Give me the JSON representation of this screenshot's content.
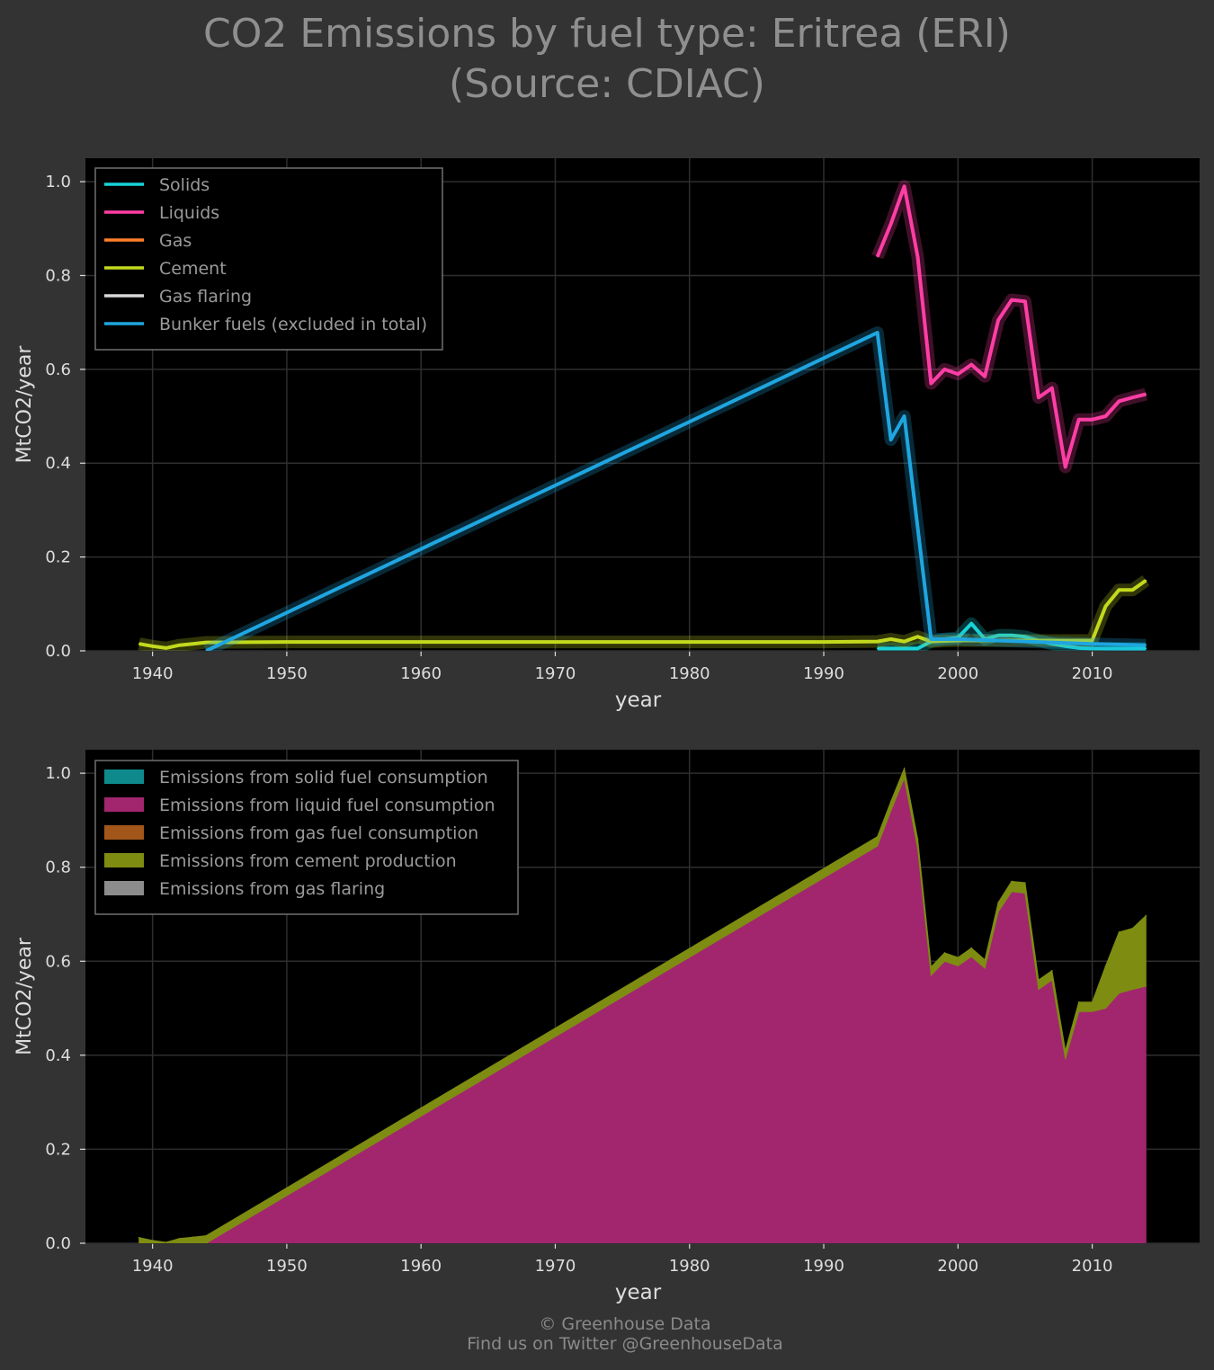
{
  "title": {
    "line1": "CO2 Emissions by fuel type: Eritrea (ERI)",
    "line2": "(Source: CDIAC)"
  },
  "footer": {
    "line1": "© Greenhouse Data",
    "line2": "Find us on Twitter @GreenhouseData"
  },
  "colors": {
    "background": "#333333",
    "plot_background": "#000000",
    "grid": "#2e2e2e",
    "text": "#dddddd",
    "legend_text": "#9a9a9a"
  },
  "chart_data": [
    {
      "type": "line",
      "xlabel": "year",
      "ylabel": "MtCO2/year",
      "xlim": [
        1935,
        2018
      ],
      "ylim": [
        0,
        1.05
      ],
      "xticks": [
        1940,
        1950,
        1960,
        1970,
        1980,
        1990,
        2000,
        2010
      ],
      "yticks": [
        "0.0",
        "0.2",
        "0.4",
        "0.6",
        "0.8",
        "1.0"
      ],
      "grid": true,
      "legend_position": "top-left",
      "series": [
        {
          "name": "Solids",
          "color": "#17d3d8",
          "points": [
            [
              1994,
              0.005
            ],
            [
              1995,
              0.005
            ],
            [
              1996,
              0.005
            ],
            [
              1997,
              0.005
            ],
            [
              1998,
              0.02
            ],
            [
              1999,
              0.025
            ],
            [
              2000,
              0.028
            ],
            [
              2001,
              0.058
            ],
            [
              2002,
              0.025
            ],
            [
              2003,
              0.033
            ],
            [
              2004,
              0.033
            ],
            [
              2005,
              0.03
            ],
            [
              2006,
              0.022
            ],
            [
              2007,
              0.015
            ],
            [
              2008,
              0.01
            ],
            [
              2009,
              0.006
            ],
            [
              2010,
              0.005
            ],
            [
              2011,
              0.005
            ],
            [
              2012,
              0.005
            ],
            [
              2013,
              0.005
            ],
            [
              2014,
              0.005
            ]
          ]
        },
        {
          "name": "Liquids",
          "color": "#ff3ea5",
          "points": [
            [
              1994,
              0.84
            ],
            [
              1995,
              0.91
            ],
            [
              1996,
              0.99
            ],
            [
              1997,
              0.84
            ],
            [
              1998,
              0.57
            ],
            [
              1999,
              0.6
            ],
            [
              2000,
              0.59
            ],
            [
              2001,
              0.61
            ],
            [
              2002,
              0.585
            ],
            [
              2003,
              0.705
            ],
            [
              2004,
              0.748
            ],
            [
              2005,
              0.745
            ],
            [
              2006,
              0.54
            ],
            [
              2007,
              0.56
            ],
            [
              2008,
              0.392
            ],
            [
              2009,
              0.493
            ],
            [
              2010,
              0.493
            ],
            [
              2011,
              0.5
            ],
            [
              2012,
              0.532
            ],
            [
              2013,
              0.54
            ],
            [
              2014,
              0.547
            ]
          ]
        },
        {
          "name": "Gas",
          "color": "#ff7f2a",
          "points": []
        },
        {
          "name": "Cement",
          "color": "#c2d91e",
          "points": [
            [
              1939,
              0.015
            ],
            [
              1940,
              0.01
            ],
            [
              1941,
              0.006
            ],
            [
              1942,
              0.012
            ],
            [
              1943,
              0.015
            ],
            [
              1944,
              0.018
            ],
            [
              1950,
              0.019
            ],
            [
              1960,
              0.019
            ],
            [
              1970,
              0.019
            ],
            [
              1980,
              0.019
            ],
            [
              1990,
              0.019
            ],
            [
              1994,
              0.02
            ],
            [
              1995,
              0.025
            ],
            [
              1996,
              0.02
            ],
            [
              1997,
              0.03
            ],
            [
              1998,
              0.02
            ],
            [
              2000,
              0.022
            ],
            [
              2005,
              0.022
            ],
            [
              2010,
              0.022
            ],
            [
              2011,
              0.095
            ],
            [
              2012,
              0.13
            ],
            [
              2013,
              0.13
            ],
            [
              2014,
              0.15
            ]
          ]
        },
        {
          "name": "Gas flaring",
          "color": "#d8d8d8",
          "points": []
        },
        {
          "name": "Bunker fuels (excluded in total)",
          "color": "#1fa6e0",
          "points": [
            [
              1944,
              0.0
            ],
            [
              1994,
              0.678
            ],
            [
              1995,
              0.45
            ],
            [
              1996,
              0.5
            ],
            [
              1998,
              0.025
            ],
            [
              2000,
              0.025
            ],
            [
              2005,
              0.02
            ],
            [
              2010,
              0.015
            ],
            [
              2014,
              0.012
            ]
          ]
        }
      ]
    },
    {
      "type": "area",
      "stacked": true,
      "xlabel": "year",
      "ylabel": "MtCO2/year",
      "xlim": [
        1935,
        2018
      ],
      "ylim": [
        0,
        1.05
      ],
      "xticks": [
        1940,
        1950,
        1960,
        1970,
        1980,
        1990,
        2000,
        2010
      ],
      "yticks": [
        "0.0",
        "0.2",
        "0.4",
        "0.6",
        "0.8",
        "1.0"
      ],
      "grid": true,
      "legend_position": "top-left",
      "series": [
        {
          "name": "Emissions from solid fuel consumption",
          "color": "#0e8a8c",
          "points": [
            [
              1939,
              0
            ],
            [
              2014,
              0
            ]
          ]
        },
        {
          "name": "Emissions from liquid fuel consumption",
          "color": "#a1266e",
          "points": [
            [
              1939,
              0
            ],
            [
              1940,
              0
            ],
            [
              1941,
              0
            ],
            [
              1942,
              0
            ],
            [
              1943,
              0
            ],
            [
              1944,
              0
            ],
            [
              1994,
              0.845
            ],
            [
              1995,
              0.92
            ],
            [
              1996,
              0.99
            ],
            [
              1997,
              0.84
            ],
            [
              1998,
              0.57
            ],
            [
              1999,
              0.6
            ],
            [
              2000,
              0.59
            ],
            [
              2001,
              0.61
            ],
            [
              2002,
              0.585
            ],
            [
              2003,
              0.705
            ],
            [
              2004,
              0.748
            ],
            [
              2005,
              0.745
            ],
            [
              2006,
              0.54
            ],
            [
              2007,
              0.56
            ],
            [
              2008,
              0.392
            ],
            [
              2009,
              0.493
            ],
            [
              2010,
              0.493
            ],
            [
              2011,
              0.5
            ],
            [
              2012,
              0.532
            ],
            [
              2013,
              0.54
            ],
            [
              2014,
              0.547
            ]
          ]
        },
        {
          "name": "Emissions from gas fuel consumption",
          "color": "#a2561a",
          "points": [
            [
              1939,
              0
            ],
            [
              2014,
              0
            ]
          ]
        },
        {
          "name": "Emissions from cement production",
          "color": "#7e8c12",
          "points": [
            [
              1939,
              0.012
            ],
            [
              1940,
              0.006
            ],
            [
              1941,
              0.002
            ],
            [
              1942,
              0.01
            ],
            [
              1943,
              0.013
            ],
            [
              1944,
              0.016
            ],
            [
              1994,
              0.02
            ],
            [
              1995,
              0.02
            ],
            [
              1996,
              0.02
            ],
            [
              1997,
              0.02
            ],
            [
              1998,
              0.018
            ],
            [
              1999,
              0.018
            ],
            [
              2000,
              0.018
            ],
            [
              2001,
              0.018
            ],
            [
              2002,
              0.018
            ],
            [
              2003,
              0.02
            ],
            [
              2004,
              0.022
            ],
            [
              2005,
              0.022
            ],
            [
              2006,
              0.02
            ],
            [
              2007,
              0.02
            ],
            [
              2008,
              0.018
            ],
            [
              2009,
              0.02
            ],
            [
              2010,
              0.02
            ],
            [
              2011,
              0.09
            ],
            [
              2012,
              0.13
            ],
            [
              2013,
              0.13
            ],
            [
              2014,
              0.15
            ]
          ]
        },
        {
          "name": "Emissions from gas flaring",
          "color": "#8c8c8c",
          "points": [
            [
              1939,
              0
            ],
            [
              2014,
              0
            ]
          ]
        }
      ]
    }
  ]
}
